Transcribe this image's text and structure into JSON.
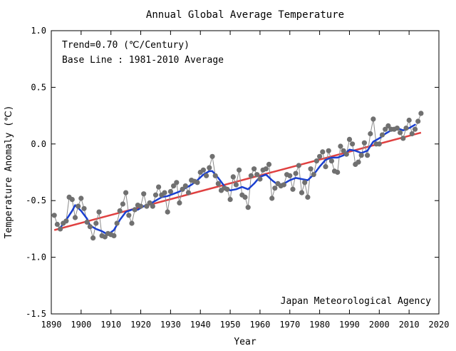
{
  "chart_data": {
    "type": "line",
    "title": "Annual Global Average Temperature",
    "xlabel": "Year",
    "ylabel": "Temperature Anomaly (℃)",
    "xlim": [
      1890,
      2020
    ],
    "ylim": [
      -1.5,
      1.0
    ],
    "xticks": [
      1890,
      1900,
      1910,
      1920,
      1930,
      1940,
      1950,
      1960,
      1970,
      1980,
      1990,
      2000,
      2010,
      2020
    ],
    "yticks": [
      1.0,
      0.5,
      0.0,
      -0.5,
      -1.0,
      -1.5
    ],
    "ytick_labels": [
      "1.0",
      "0.5",
      "0.0",
      "-0.5",
      "-1.0",
      "-1.5"
    ],
    "grid": false,
    "annotations": {
      "trend": "Trend=0.70 (℃/Century)",
      "baseline": "Base Line : 1981-2010 Average",
      "source": "Japan Meteorological Agency"
    },
    "colors": {
      "annual_point": "#707070",
      "annual_line": "#8a8a8a",
      "moving_average": "#1a3fd0",
      "trend_line": "#e04040"
    },
    "series": [
      {
        "name": "",
        "style": "points-with-line",
        "x": [
          1891,
          1892,
          1893,
          1894,
          1895,
          1896,
          1897,
          1898,
          1899,
          1900,
          1901,
          1902,
          1903,
          1904,
          1905,
          1906,
          1907,
          1908,
          1909,
          1910,
          1911,
          1912,
          1913,
          1914,
          1915,
          1916,
          1917,
          1918,
          1919,
          1920,
          1921,
          1922,
          1923,
          1924,
          1925,
          1926,
          1927,
          1928,
          1929,
          1930,
          1931,
          1932,
          1933,
          1934,
          1935,
          1936,
          1937,
          1938,
          1939,
          1940,
          1941,
          1942,
          1943,
          1944,
          1945,
          1946,
          1947,
          1948,
          1949,
          1950,
          1951,
          1952,
          1953,
          1954,
          1955,
          1956,
          1957,
          1958,
          1959,
          1960,
          1961,
          1962,
          1963,
          1964,
          1965,
          1966,
          1967,
          1968,
          1969,
          1970,
          1971,
          1972,
          1973,
          1974,
          1975,
          1976,
          1977,
          1978,
          1979,
          1980,
          1981,
          1982,
          1983,
          1984,
          1985,
          1986,
          1987,
          1988,
          1989,
          1990,
          1991,
          1992,
          1993,
          1994,
          1995,
          1996,
          1997,
          1998,
          1999,
          2000,
          2001,
          2002,
          2003,
          2004,
          2005,
          2006,
          2007,
          2008,
          2009,
          2010,
          2011,
          2012,
          2013,
          2014
        ],
        "y": [
          -0.63,
          -0.71,
          -0.75,
          -0.7,
          -0.68,
          -0.47,
          -0.49,
          -0.65,
          -0.55,
          -0.48,
          -0.57,
          -0.69,
          -0.73,
          -0.83,
          -0.7,
          -0.6,
          -0.81,
          -0.82,
          -0.79,
          -0.8,
          -0.81,
          -0.7,
          -0.59,
          -0.53,
          -0.43,
          -0.63,
          -0.7,
          -0.58,
          -0.54,
          -0.55,
          -0.44,
          -0.55,
          -0.52,
          -0.55,
          -0.45,
          -0.38,
          -0.45,
          -0.43,
          -0.6,
          -0.42,
          -0.37,
          -0.34,
          -0.52,
          -0.4,
          -0.37,
          -0.43,
          -0.32,
          -0.33,
          -0.34,
          -0.25,
          -0.23,
          -0.28,
          -0.21,
          -0.11,
          -0.28,
          -0.35,
          -0.41,
          -0.39,
          -0.4,
          -0.49,
          -0.29,
          -0.36,
          -0.23,
          -0.45,
          -0.47,
          -0.56,
          -0.28,
          -0.22,
          -0.27,
          -0.31,
          -0.23,
          -0.22,
          -0.18,
          -0.48,
          -0.39,
          -0.35,
          -0.37,
          -0.36,
          -0.27,
          -0.28,
          -0.4,
          -0.26,
          -0.19,
          -0.43,
          -0.34,
          -0.47,
          -0.22,
          -0.27,
          -0.15,
          -0.11,
          -0.07,
          -0.2,
          -0.06,
          -0.15,
          -0.24,
          -0.25,
          -0.02,
          -0.06,
          -0.09,
          0.04,
          0.0,
          -0.18,
          -0.16,
          -0.1,
          0.01,
          -0.1,
          0.09,
          0.22,
          0.0,
          0.0,
          0.08,
          0.13,
          0.16,
          0.13,
          0.13,
          0.14,
          0.1,
          0.05,
          0.14,
          0.21,
          0.09,
          0.13,
          0.2,
          0.27
        ]
      },
      {
        "name": "",
        "style": "moving-average",
        "x": [
          1893,
          1895,
          1897,
          1898,
          1900,
          1902,
          1903,
          1905,
          1907,
          1909,
          1911,
          1913,
          1915,
          1917,
          1919,
          1921,
          1923,
          1925,
          1927,
          1929,
          1931,
          1933,
          1935,
          1937,
          1939,
          1941,
          1943,
          1944,
          1946,
          1948,
          1950,
          1952,
          1954,
          1956,
          1958,
          1960,
          1962,
          1964,
          1966,
          1968,
          1970,
          1972,
          1974,
          1976,
          1978,
          1980,
          1982,
          1984,
          1986,
          1988,
          1990,
          1992,
          1994,
          1996,
          1998,
          2000,
          2002,
          2004,
          2006,
          2008,
          2010,
          2012
        ],
        "y": [
          -0.74,
          -0.67,
          -0.59,
          -0.54,
          -0.59,
          -0.66,
          -0.72,
          -0.75,
          -0.77,
          -0.8,
          -0.76,
          -0.67,
          -0.6,
          -0.58,
          -0.58,
          -0.55,
          -0.53,
          -0.5,
          -0.47,
          -0.46,
          -0.44,
          -0.42,
          -0.39,
          -0.36,
          -0.32,
          -0.27,
          -0.24,
          -0.24,
          -0.3,
          -0.37,
          -0.41,
          -0.4,
          -0.38,
          -0.4,
          -0.35,
          -0.29,
          -0.27,
          -0.32,
          -0.36,
          -0.35,
          -0.32,
          -0.3,
          -0.31,
          -0.32,
          -0.27,
          -0.2,
          -0.14,
          -0.12,
          -0.12,
          -0.1,
          -0.05,
          -0.06,
          -0.08,
          -0.06,
          0.02,
          0.05,
          0.09,
          0.12,
          0.14,
          0.12,
          0.14,
          0.17
        ]
      },
      {
        "name": "",
        "style": "trend-line",
        "x": [
          1891,
          2014
        ],
        "y": [
          -0.76,
          0.1
        ]
      }
    ]
  }
}
